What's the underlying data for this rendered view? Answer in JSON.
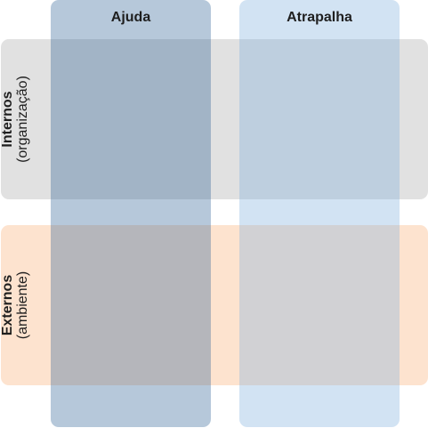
{
  "columns": [
    {
      "label": "Ajuda",
      "color": "#2f6196",
      "opacity": 0.35
    },
    {
      "label": "Atrapalha",
      "color": "#7eaedc",
      "opacity": 0.35
    }
  ],
  "rows": [
    {
      "title": "Internos",
      "subtitle": "(organização)",
      "color": "#b4b4b4",
      "opacity": 0.4
    },
    {
      "title": "Externos",
      "subtitle": "(ambiente)",
      "color": "#f8a86a",
      "opacity": 0.32
    }
  ]
}
